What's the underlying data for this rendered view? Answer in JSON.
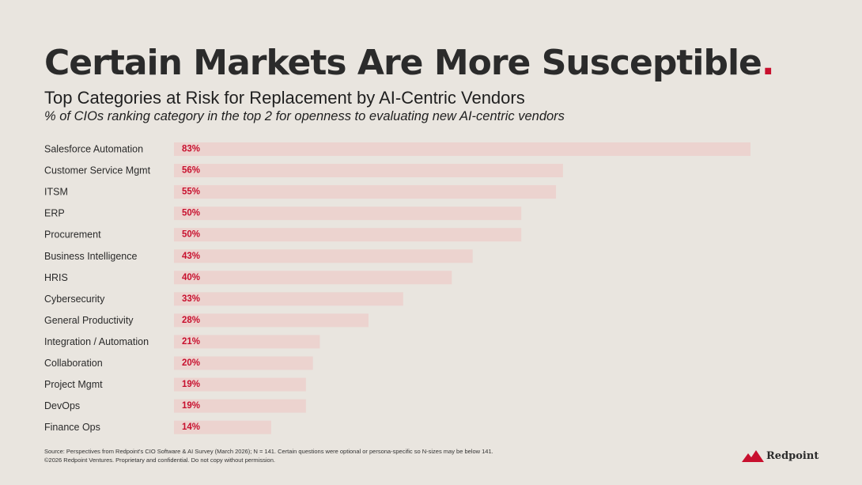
{
  "header": {
    "title": "Certain Markets Are More Susceptible",
    "title_dot": ".",
    "subtitle": "Top Categories at Risk for Replacement by AI-Centric Vendors",
    "note": "% of CIOs ranking category in the top 2 for openness to evaluating new AI-centric vendors"
  },
  "chart_data": {
    "type": "bar",
    "orientation": "horizontal",
    "categories": [
      "Salesforce Automation",
      "Customer Service Mgmt",
      "ITSM",
      "ERP",
      "Procurement",
      "Business Intelligence",
      "HRIS",
      "Cybersecurity",
      "General Productivity",
      "Integration / Automation",
      "Collaboration",
      "Project Mgmt",
      "DevOps",
      "Finance Ops"
    ],
    "values": [
      83,
      56,
      55,
      50,
      50,
      43,
      40,
      33,
      28,
      21,
      20,
      19,
      19,
      14
    ],
    "value_labels": [
      "83%",
      "56%",
      "55%",
      "50%",
      "50%",
      "43%",
      "40%",
      "33%",
      "28%",
      "21%",
      "20%",
      "19%",
      "19%",
      "14%"
    ],
    "unit": "%",
    "xlim": [
      0,
      83
    ],
    "grid": false,
    "legend": "none",
    "bar_color": "#ecd3cf",
    "label_color": "#c8102e"
  },
  "footer": {
    "source_line1": "Source: Perspectives from Redpoint's CIO Software & AI Survey (March 2026); N = 141. Certain questions were optional or persona-specific so  N-sizes may be below 141.",
    "source_line2": "©2026 Redpoint Ventures. Proprietary and confidential. Do not copy without permission.",
    "logo_text": "Redpoint",
    "logo_icon": "mountain-icon",
    "brand_color": "#c8102e"
  }
}
